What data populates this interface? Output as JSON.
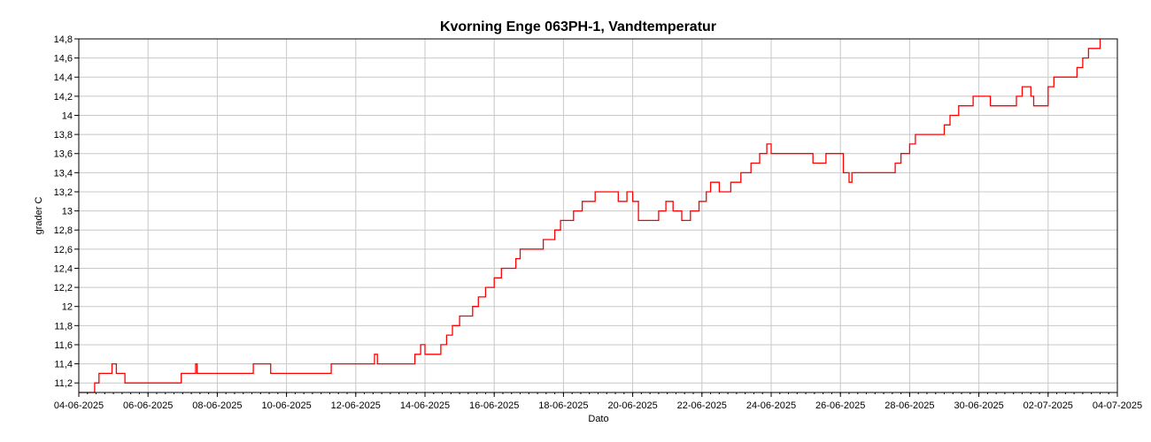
{
  "chart_data": {
    "type": "line",
    "title": "Kvorning Enge 063PH-1, Vandtemperatur",
    "xlabel": "Dato",
    "ylabel": "grader C",
    "xlim": [
      "04-06-2025",
      "04-07-2025"
    ],
    "ylim": [
      11.1,
      14.8
    ],
    "x_ticks": [
      "04-06-2025",
      "06-06-2025",
      "08-06-2025",
      "10-06-2025",
      "12-06-2025",
      "14-06-2025",
      "16-06-2025",
      "18-06-2025",
      "20-06-2025",
      "22-06-2025",
      "24-06-2025",
      "26-06-2025",
      "28-06-2025",
      "30-06-2025",
      "02-07-2025",
      "04-07-2025"
    ],
    "y_ticks": [
      "11,2",
      "11,4",
      "11,6",
      "11,8",
      "12",
      "12,2",
      "12,4",
      "12,6",
      "12,8",
      "13",
      "13,2",
      "13,4",
      "13,6",
      "13,8",
      "14",
      "14,2",
      "14,4",
      "14,6",
      "14,8"
    ],
    "grid": true,
    "colors": {
      "series": "#ff0000",
      "grid": "#c8c8c8",
      "axis": "#000000"
    },
    "series": [
      {
        "values": [
          [
            "04-06-2025 00:00",
            11.1
          ],
          [
            "04-06-2025 10:00",
            11.1
          ],
          [
            "04-06-2025 11:00",
            11.2
          ],
          [
            "04-06-2025 14:00",
            11.3
          ],
          [
            "04-06-2025 22:00",
            11.3
          ],
          [
            "04-06-2025 23:00",
            11.4
          ],
          [
            "05-06-2025 02:00",
            11.3
          ],
          [
            "05-06-2025 08:00",
            11.2
          ],
          [
            "06-06-2025 22:00",
            11.2
          ],
          [
            "06-06-2025 23:00",
            11.3
          ],
          [
            "07-06-2025 08:00",
            11.3
          ],
          [
            "07-06-2025 09:00",
            11.4
          ],
          [
            "07-06-2025 10:00",
            11.3
          ],
          [
            "09-06-2025 00:00",
            11.3
          ],
          [
            "09-06-2025 01:00",
            11.4
          ],
          [
            "09-06-2025 12:00",
            11.4
          ],
          [
            "09-06-2025 13:00",
            11.3
          ],
          [
            "11-06-2025 06:00",
            11.3
          ],
          [
            "11-06-2025 07:00",
            11.4
          ],
          [
            "12-06-2025 12:00",
            11.4
          ],
          [
            "12-06-2025 13:00",
            11.5
          ],
          [
            "12-06-2025 15:00",
            11.4
          ],
          [
            "13-06-2025 16:00",
            11.4
          ],
          [
            "13-06-2025 17:00",
            11.5
          ],
          [
            "13-06-2025 21:00",
            11.6
          ],
          [
            "14-06-2025 00:00",
            11.5
          ],
          [
            "14-06-2025 10:00",
            11.5
          ],
          [
            "14-06-2025 11:00",
            11.6
          ],
          [
            "14-06-2025 15:00",
            11.7
          ],
          [
            "14-06-2025 19:00",
            11.8
          ],
          [
            "15-06-2025 00:00",
            11.9
          ],
          [
            "15-06-2025 09:00",
            12.0
          ],
          [
            "15-06-2025 13:00",
            12.1
          ],
          [
            "15-06-2025 18:00",
            12.2
          ],
          [
            "16-06-2025 00:00",
            12.3
          ],
          [
            "16-06-2025 05:00",
            12.4
          ],
          [
            "16-06-2025 15:00",
            12.5
          ],
          [
            "16-06-2025 18:00",
            12.6
          ],
          [
            "17-06-2025 08:00",
            12.6
          ],
          [
            "17-06-2025 10:00",
            12.7
          ],
          [
            "17-06-2025 18:00",
            12.8
          ],
          [
            "17-06-2025 22:00",
            12.9
          ],
          [
            "18-06-2025 07:00",
            13.0
          ],
          [
            "18-06-2025 13:00",
            13.1
          ],
          [
            "18-06-2025 22:00",
            13.2
          ],
          [
            "19-06-2025 13:00",
            13.2
          ],
          [
            "19-06-2025 14:00",
            13.1
          ],
          [
            "19-06-2025 20:00",
            13.2
          ],
          [
            "20-06-2025 00:00",
            13.1
          ],
          [
            "20-06-2025 04:00",
            12.9
          ],
          [
            "20-06-2025 18:00",
            13.0
          ],
          [
            "20-06-2025 23:00",
            13.1
          ],
          [
            "21-06-2025 04:00",
            13.0
          ],
          [
            "21-06-2025 10:00",
            12.9
          ],
          [
            "21-06-2025 16:00",
            13.0
          ],
          [
            "21-06-2025 22:00",
            13.1
          ],
          [
            "22-06-2025 03:00",
            13.2
          ],
          [
            "22-06-2025 06:00",
            13.3
          ],
          [
            "22-06-2025 12:00",
            13.2
          ],
          [
            "22-06-2025 18:00",
            13.2
          ],
          [
            "22-06-2025 20:00",
            13.3
          ],
          [
            "23-06-2025 03:00",
            13.4
          ],
          [
            "23-06-2025 10:00",
            13.5
          ],
          [
            "23-06-2025 16:00",
            13.6
          ],
          [
            "23-06-2025 20:00",
            13.6
          ],
          [
            "23-06-2025 21:00",
            13.7
          ],
          [
            "24-06-2025 00:00",
            13.6
          ],
          [
            "25-06-2025 02:00",
            13.6
          ],
          [
            "25-06-2025 05:00",
            13.5
          ],
          [
            "25-06-2025 12:00",
            13.5
          ],
          [
            "25-06-2025 14:00",
            13.6
          ],
          [
            "26-06-2025 00:00",
            13.6
          ],
          [
            "26-06-2025 02:00",
            13.4
          ],
          [
            "26-06-2025 06:00",
            13.3
          ],
          [
            "26-06-2025 08:00",
            13.4
          ],
          [
            "27-06-2025 12:00",
            13.4
          ],
          [
            "27-06-2025 14:00",
            13.5
          ],
          [
            "27-06-2025 18:00",
            13.6
          ],
          [
            "28-06-2025 00:00",
            13.7
          ],
          [
            "28-06-2025 04:00",
            13.8
          ],
          [
            "28-06-2025 20:00",
            13.8
          ],
          [
            "29-06-2025 00:00",
            13.9
          ],
          [
            "29-06-2025 04:00",
            14.0
          ],
          [
            "29-06-2025 10:00",
            14.1
          ],
          [
            "29-06-2025 20:00",
            14.2
          ],
          [
            "30-06-2025 06:00",
            14.2
          ],
          [
            "30-06-2025 08:00",
            14.1
          ],
          [
            "01-07-2025 02:00",
            14.2
          ],
          [
            "01-07-2025 06:00",
            14.3
          ],
          [
            "01-07-2025 12:00",
            14.2
          ],
          [
            "01-07-2025 14:00",
            14.1
          ],
          [
            "01-07-2025 18:00",
            14.1
          ],
          [
            "02-07-2025 00:00",
            14.3
          ],
          [
            "02-07-2025 04:00",
            14.4
          ],
          [
            "02-07-2025 18:00",
            14.4
          ],
          [
            "02-07-2025 20:00",
            14.5
          ],
          [
            "03-07-2025 00:00",
            14.6
          ],
          [
            "03-07-2025 04:00",
            14.7
          ],
          [
            "03-07-2025 12:00",
            14.8
          ]
        ]
      }
    ]
  }
}
